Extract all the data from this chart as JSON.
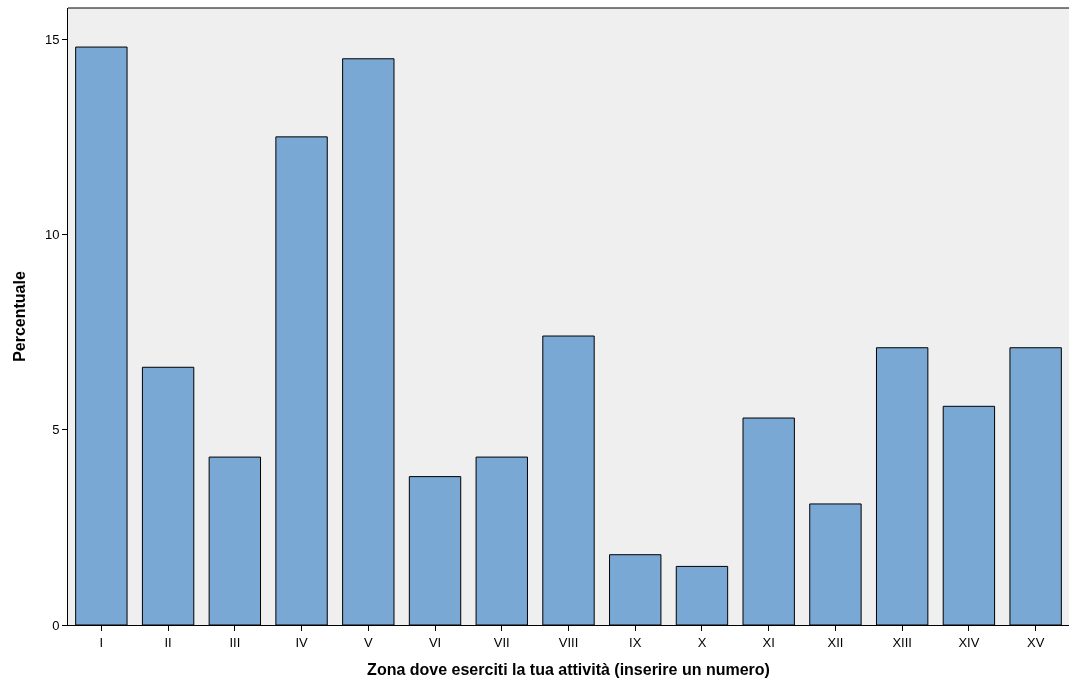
{
  "chart_data": {
    "type": "bar",
    "xlabel": "Zona dove eserciti la tua attività (inserire un numero)",
    "ylabel": "Percentuale",
    "categories": [
      "I",
      "II",
      "III",
      "IV",
      "V",
      "VI",
      "VII",
      "VIII",
      "IX",
      "X",
      "XI",
      "XII",
      "XIII",
      "XIV",
      "XV"
    ],
    "values": [
      14.8,
      6.6,
      4.3,
      12.5,
      14.5,
      3.8,
      4.3,
      7.4,
      1.8,
      1.5,
      5.3,
      3.1,
      7.1,
      5.6,
      7.1
    ],
    "color": "#7aa8d5",
    "ylim": [
      0,
      15.8
    ],
    "yticks": [
      0,
      5,
      10,
      15
    ],
    "grid": false,
    "legend": false
  }
}
